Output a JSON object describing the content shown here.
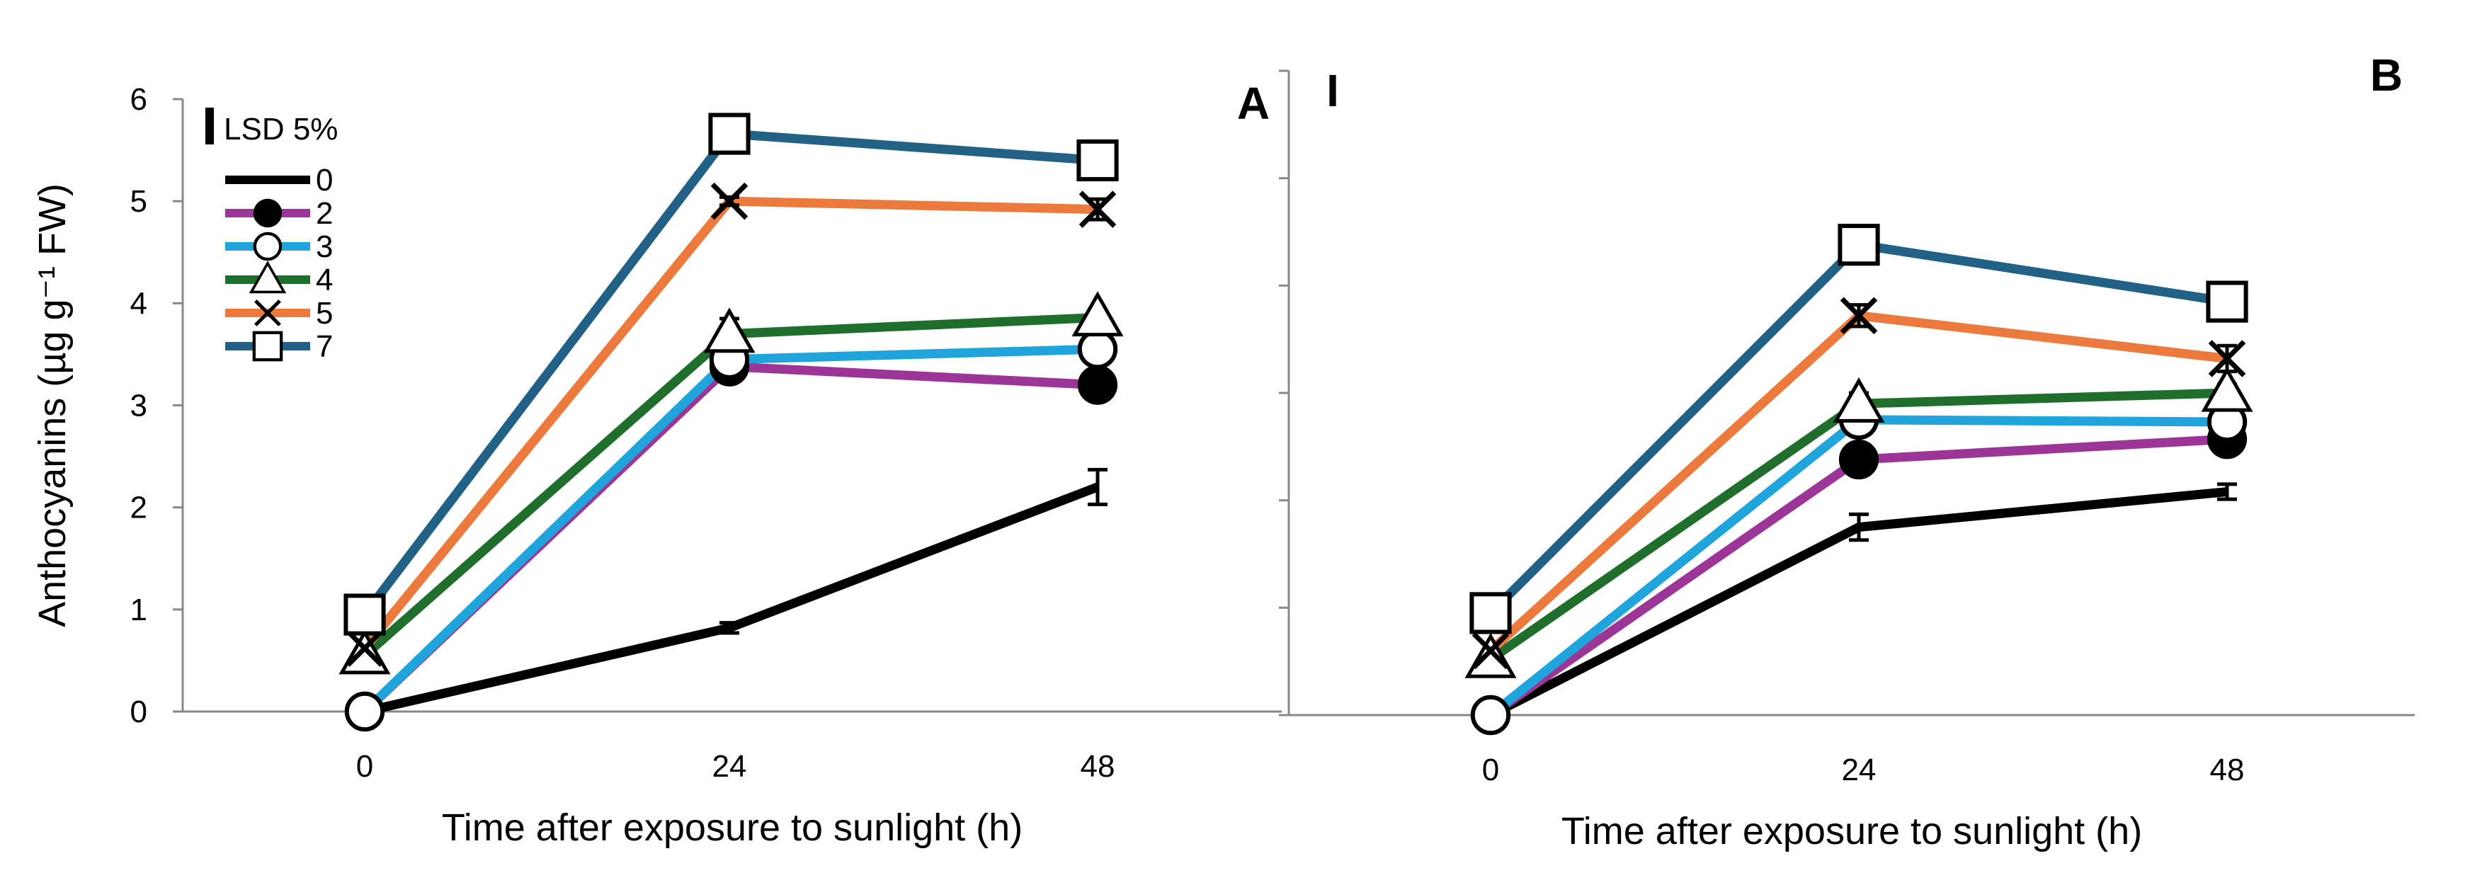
{
  "chart_data": [
    {
      "panel": "A",
      "type": "line",
      "title": "",
      "panel_label": "A",
      "xlabel": "Time after exposure to sunlight (h)",
      "ylabel": "Anthocyanins (µg g⁻¹ FW)",
      "x": [
        0,
        24,
        48
      ],
      "x_tick_labels": [
        "0",
        "24",
        "48"
      ],
      "y_ticks": [
        0,
        1,
        2,
        3,
        4,
        5,
        6
      ],
      "y_tick_labels": [
        "0",
        "1",
        "2",
        "3",
        "4",
        "5",
        "6"
      ],
      "ylim": [
        0,
        6
      ],
      "legend_title": "LSD 5%",
      "series": [
        {
          "name": "0",
          "color": "#000000",
          "marker": "none",
          "values": [
            0.0,
            0.82,
            2.2
          ],
          "errors": [
            0.0,
            0.05,
            0.17
          ]
        },
        {
          "name": "2",
          "color": "#9c3696",
          "marker": "filled-circle",
          "values": [
            0.0,
            3.38,
            3.2
          ],
          "errors": [
            0.0,
            0.1,
            0.07
          ]
        },
        {
          "name": "3",
          "color": "#1fa4dc",
          "marker": "open-circle",
          "values": [
            0.0,
            3.45,
            3.55
          ],
          "errors": [
            0.0,
            0.07,
            0.06
          ]
        },
        {
          "name": "4",
          "color": "#1f6e2c",
          "marker": "triangle",
          "values": [
            0.55,
            3.7,
            3.86
          ],
          "errors": [
            0.0,
            0.15,
            0.07
          ]
        },
        {
          "name": "5",
          "color": "#ec7a3c",
          "marker": "x",
          "values": [
            0.62,
            5.0,
            4.92
          ],
          "errors": [
            0.0,
            0.04,
            0.1
          ]
        },
        {
          "name": "7",
          "color": "#216185",
          "marker": "open-square",
          "values": [
            0.95,
            5.66,
            5.4
          ],
          "errors": [
            0.0,
            0.05,
            0.12
          ]
        }
      ]
    },
    {
      "panel": "B",
      "type": "line",
      "title": "",
      "panel_label": "B",
      "xlabel": "Time after exposure to sunlight (h)",
      "ylabel": "",
      "x": [
        0,
        24,
        48
      ],
      "x_tick_labels": [
        "0",
        "24",
        "48"
      ],
      "y_ticks": [
        0,
        1,
        2,
        3,
        4,
        5,
        6
      ],
      "y_tick_labels": [],
      "ylim": [
        0,
        6
      ],
      "lsd_marker": "I",
      "series": [
        {
          "name": "0",
          "color": "#000000",
          "marker": "none",
          "values": [
            0.0,
            1.75,
            2.08
          ],
          "errors": [
            0.0,
            0.12,
            0.07
          ]
        },
        {
          "name": "2",
          "color": "#9c3696",
          "marker": "filled-circle",
          "values": [
            0.0,
            2.38,
            2.57
          ],
          "errors": [
            0.0,
            0.12,
            0.1
          ]
        },
        {
          "name": "3",
          "color": "#1fa4dc",
          "marker": "open-circle",
          "values": [
            0.0,
            2.75,
            2.73
          ],
          "errors": [
            0.0,
            0.05,
            0.07
          ]
        },
        {
          "name": "4",
          "color": "#1f6e2c",
          "marker": "triangle",
          "values": [
            0.52,
            2.9,
            3.0
          ],
          "errors": [
            0.0,
            0.1,
            0.08
          ]
        },
        {
          "name": "5",
          "color": "#ec7a3c",
          "marker": "x",
          "values": [
            0.6,
            3.72,
            3.32
          ],
          "errors": [
            0.0,
            0.1,
            0.12
          ]
        },
        {
          "name": "7",
          "color": "#216185",
          "marker": "open-square",
          "values": [
            0.95,
            4.38,
            3.85
          ],
          "errors": [
            0.0,
            0.14,
            0.1
          ]
        }
      ]
    }
  ]
}
